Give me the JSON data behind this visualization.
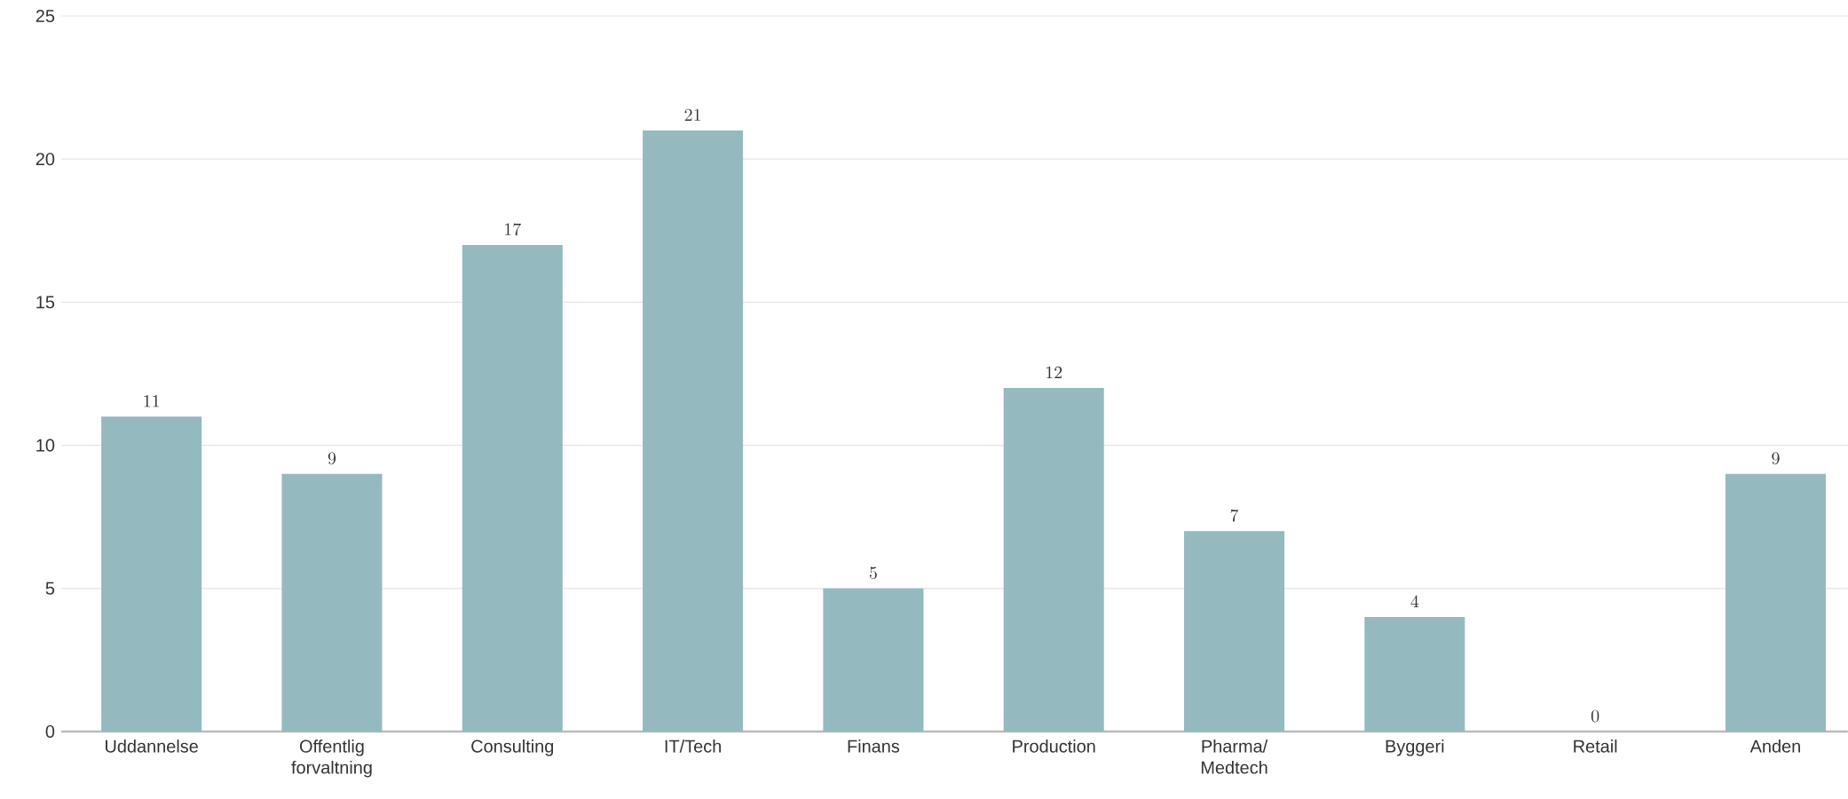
{
  "chart_data": {
    "type": "bar",
    "categories": [
      "Uddannelse",
      "Offentlig forvaltning",
      "Consulting",
      "IT/Tech",
      "Finans",
      "Production",
      "Pharma/ Medtech",
      "Byggeri",
      "Retail",
      "Anden"
    ],
    "values": [
      11,
      9,
      17,
      21,
      5,
      12,
      7,
      4,
      0,
      9
    ],
    "color": "#94babf",
    "ylim": [
      0,
      25
    ],
    "yticks": [
      0,
      5,
      10,
      15,
      20,
      25
    ],
    "grid": "y",
    "data_labels": true
  }
}
